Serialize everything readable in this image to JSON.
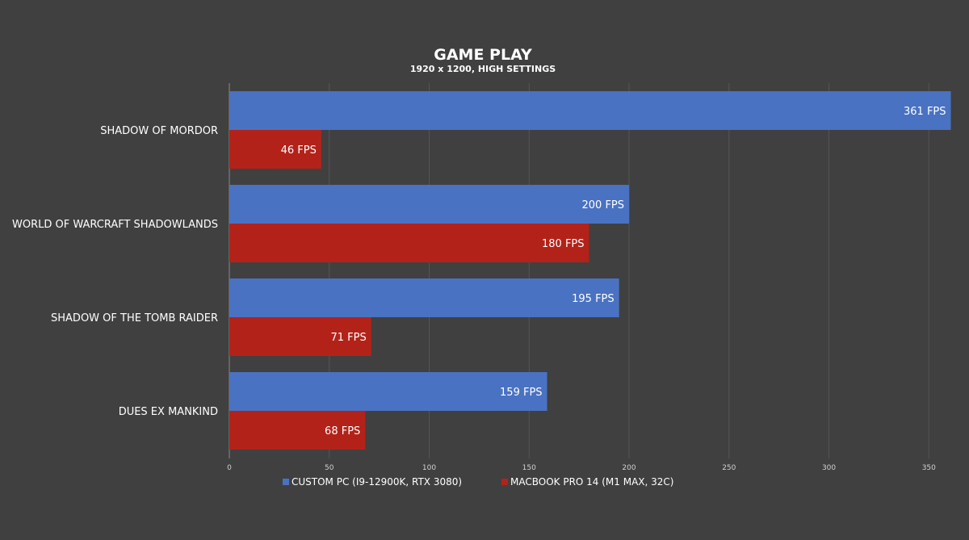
{
  "chart_data": {
    "type": "bar",
    "orientation": "horizontal",
    "title": "GAME PLAY",
    "subtitle": "1920 x 1200, HIGH SETTINGS",
    "categories": [
      "SHADOW OF MORDOR",
      "WORLD OF WARCRAFT SHADOWLANDS",
      "SHADOW OF THE TOMB RAIDER",
      "DUES EX MANKIND"
    ],
    "series": [
      {
        "name": "CUSTOM PC (I9-12900K, RTX 3080)",
        "color": "#4a72c2",
        "values": [
          361,
          200,
          195,
          159
        ],
        "labels": [
          "361 FPS",
          "200 FPS",
          "195 FPS",
          "159 FPS"
        ]
      },
      {
        "name": "MACBOOK PRO 14 (M1 MAX, 32C)",
        "color": "#b32219",
        "values": [
          46,
          180,
          71,
          68
        ],
        "labels": [
          "46 FPS",
          "180 FPS",
          "71 FPS",
          "68 FPS"
        ]
      }
    ],
    "xlim": [
      0,
      362
    ],
    "x_ticks": [
      0,
      50,
      100,
      150,
      200,
      250,
      300,
      350
    ],
    "grid": true,
    "legend_position": "bottom",
    "colors": {
      "background": "#404040",
      "gridline": "#555555",
      "axis": "#888888",
      "text": "#ffffff",
      "tick_text": "#d0d0d0"
    }
  }
}
